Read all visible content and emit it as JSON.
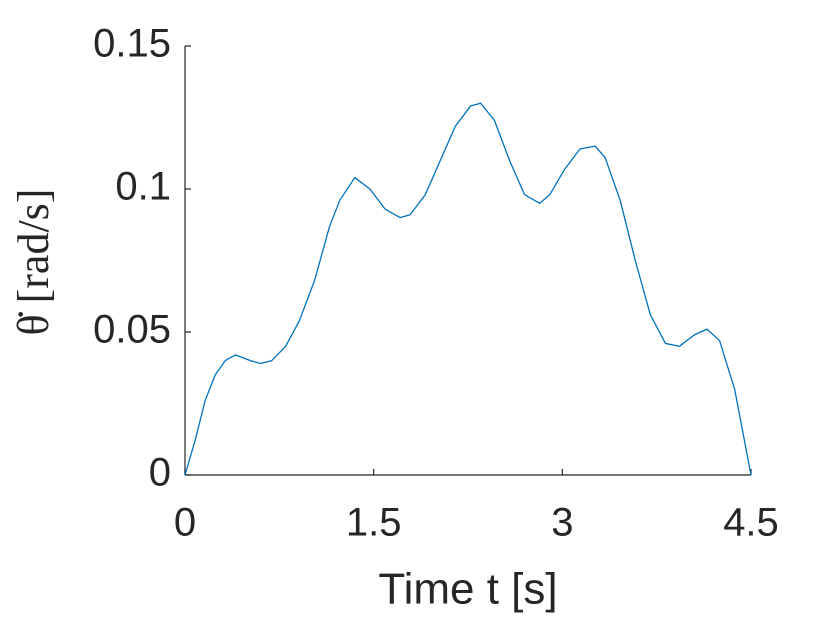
{
  "chart_data": {
    "type": "line",
    "xlabel": "Time t [s]",
    "ylabel": "θ̇ [rad/s]",
    "x": [
      0,
      0.08,
      0.16,
      0.24,
      0.32,
      0.4,
      0.52,
      0.6,
      0.69,
      0.8,
      0.91,
      1.03,
      1.15,
      1.23,
      1.35,
      1.47,
      1.59,
      1.71,
      1.79,
      1.91,
      2.03,
      2.15,
      2.27,
      2.35,
      2.46,
      2.58,
      2.7,
      2.82,
      2.9,
      3.02,
      3.14,
      3.26,
      3.34,
      3.46,
      3.58,
      3.7,
      3.82,
      3.93,
      4.05,
      4.15,
      4.25,
      4.37,
      4.5
    ],
    "values": [
      0,
      0.012,
      0.026,
      0.035,
      0.04,
      0.042,
      0.04,
      0.039,
      0.04,
      0.045,
      0.054,
      0.068,
      0.087,
      0.096,
      0.104,
      0.1,
      0.093,
      0.09,
      0.091,
      0.098,
      0.11,
      0.122,
      0.129,
      0.13,
      0.124,
      0.11,
      0.098,
      0.095,
      0.098,
      0.107,
      0.114,
      0.115,
      0.111,
      0.096,
      0.075,
      0.056,
      0.046,
      0.045,
      0.049,
      0.051,
      0.047,
      0.03,
      0
    ],
    "color": "#0072bd",
    "xlim": [
      0,
      4.5
    ],
    "xticks": [
      0,
      1.5,
      3,
      4.5
    ],
    "ylim": [
      0,
      0.15
    ],
    "yticks": [
      0,
      0.05,
      0.1,
      0.15
    ],
    "grid": false
  }
}
